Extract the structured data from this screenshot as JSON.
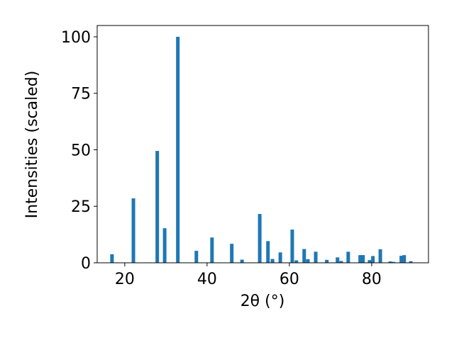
{
  "chart_data": {
    "type": "bar",
    "x_label": "2θ (°)",
    "y_label": "Intensities (scaled)",
    "x": [
      16.9,
      22.1,
      27.9,
      29.7,
      32.9,
      37.4,
      41.2,
      46.0,
      48.5,
      52.8,
      54.8,
      55.9,
      57.8,
      60.7,
      61.7,
      63.6,
      64.5,
      66.4,
      69.1,
      71.7,
      72.6,
      74.3,
      77.2,
      77.9,
      79.5,
      80.3,
      82.1,
      84.5,
      85.3,
      87.2,
      87.9,
      89.5
    ],
    "values": [
      3.8,
      28.5,
      49.5,
      15.3,
      100,
      5.3,
      11.2,
      8.4,
      1.4,
      21.6,
      9.6,
      1.7,
      4.6,
      14.7,
      1.1,
      6.1,
      1.6,
      4.9,
      1.3,
      2.4,
      0.8,
      4.9,
      3.4,
      3.4,
      1.2,
      3.0,
      6.0,
      0.6,
      0.4,
      3.1,
      3.4,
      0.7
    ],
    "color": "#1f77b4",
    "xlim": [
      13.3,
      93.8
    ],
    "xticks": [
      20,
      40,
      60,
      80
    ],
    "ylim": [
      0,
      105
    ],
    "yticks": [
      0,
      25,
      50,
      75,
      100
    ]
  }
}
